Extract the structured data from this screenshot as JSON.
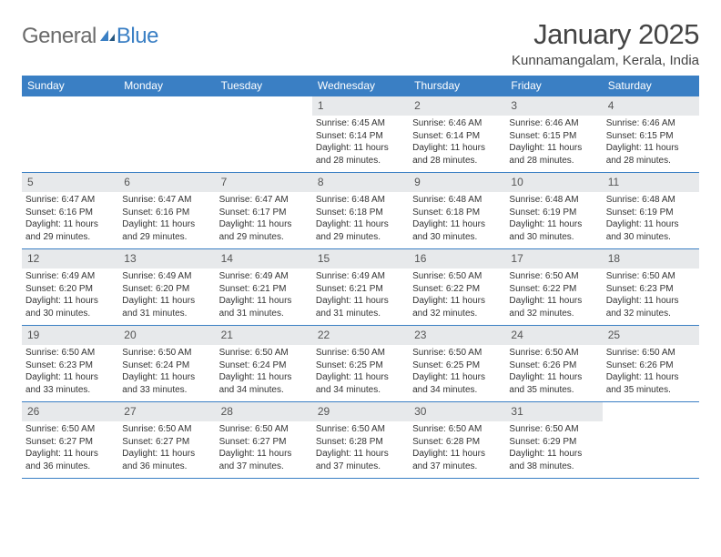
{
  "logo": {
    "general": "General",
    "blue": "Blue"
  },
  "header": {
    "title": "January 2025",
    "location": "Kunnamangalam, Kerala, India"
  },
  "colors": {
    "accent": "#3a7fc4",
    "dayHeaderBg": "#e7e9eb",
    "textMuted": "#555555",
    "logoGray": "#6b6b6b"
  },
  "daysOfWeek": [
    "Sunday",
    "Monday",
    "Tuesday",
    "Wednesday",
    "Thursday",
    "Friday",
    "Saturday"
  ],
  "weeks": [
    [
      null,
      null,
      null,
      {
        "n": "1",
        "sunrise": "6:45 AM",
        "sunset": "6:14 PM",
        "dl": "11 hours and 28 minutes."
      },
      {
        "n": "2",
        "sunrise": "6:46 AM",
        "sunset": "6:14 PM",
        "dl": "11 hours and 28 minutes."
      },
      {
        "n": "3",
        "sunrise": "6:46 AM",
        "sunset": "6:15 PM",
        "dl": "11 hours and 28 minutes."
      },
      {
        "n": "4",
        "sunrise": "6:46 AM",
        "sunset": "6:15 PM",
        "dl": "11 hours and 28 minutes."
      }
    ],
    [
      {
        "n": "5",
        "sunrise": "6:47 AM",
        "sunset": "6:16 PM",
        "dl": "11 hours and 29 minutes."
      },
      {
        "n": "6",
        "sunrise": "6:47 AM",
        "sunset": "6:16 PM",
        "dl": "11 hours and 29 minutes."
      },
      {
        "n": "7",
        "sunrise": "6:47 AM",
        "sunset": "6:17 PM",
        "dl": "11 hours and 29 minutes."
      },
      {
        "n": "8",
        "sunrise": "6:48 AM",
        "sunset": "6:18 PM",
        "dl": "11 hours and 29 minutes."
      },
      {
        "n": "9",
        "sunrise": "6:48 AM",
        "sunset": "6:18 PM",
        "dl": "11 hours and 30 minutes."
      },
      {
        "n": "10",
        "sunrise": "6:48 AM",
        "sunset": "6:19 PM",
        "dl": "11 hours and 30 minutes."
      },
      {
        "n": "11",
        "sunrise": "6:48 AM",
        "sunset": "6:19 PM",
        "dl": "11 hours and 30 minutes."
      }
    ],
    [
      {
        "n": "12",
        "sunrise": "6:49 AM",
        "sunset": "6:20 PM",
        "dl": "11 hours and 30 minutes."
      },
      {
        "n": "13",
        "sunrise": "6:49 AM",
        "sunset": "6:20 PM",
        "dl": "11 hours and 31 minutes."
      },
      {
        "n": "14",
        "sunrise": "6:49 AM",
        "sunset": "6:21 PM",
        "dl": "11 hours and 31 minutes."
      },
      {
        "n": "15",
        "sunrise": "6:49 AM",
        "sunset": "6:21 PM",
        "dl": "11 hours and 31 minutes."
      },
      {
        "n": "16",
        "sunrise": "6:50 AM",
        "sunset": "6:22 PM",
        "dl": "11 hours and 32 minutes."
      },
      {
        "n": "17",
        "sunrise": "6:50 AM",
        "sunset": "6:22 PM",
        "dl": "11 hours and 32 minutes."
      },
      {
        "n": "18",
        "sunrise": "6:50 AM",
        "sunset": "6:23 PM",
        "dl": "11 hours and 32 minutes."
      }
    ],
    [
      {
        "n": "19",
        "sunrise": "6:50 AM",
        "sunset": "6:23 PM",
        "dl": "11 hours and 33 minutes."
      },
      {
        "n": "20",
        "sunrise": "6:50 AM",
        "sunset": "6:24 PM",
        "dl": "11 hours and 33 minutes."
      },
      {
        "n": "21",
        "sunrise": "6:50 AM",
        "sunset": "6:24 PM",
        "dl": "11 hours and 34 minutes."
      },
      {
        "n": "22",
        "sunrise": "6:50 AM",
        "sunset": "6:25 PM",
        "dl": "11 hours and 34 minutes."
      },
      {
        "n": "23",
        "sunrise": "6:50 AM",
        "sunset": "6:25 PM",
        "dl": "11 hours and 34 minutes."
      },
      {
        "n": "24",
        "sunrise": "6:50 AM",
        "sunset": "6:26 PM",
        "dl": "11 hours and 35 minutes."
      },
      {
        "n": "25",
        "sunrise": "6:50 AM",
        "sunset": "6:26 PM",
        "dl": "11 hours and 35 minutes."
      }
    ],
    [
      {
        "n": "26",
        "sunrise": "6:50 AM",
        "sunset": "6:27 PM",
        "dl": "11 hours and 36 minutes."
      },
      {
        "n": "27",
        "sunrise": "6:50 AM",
        "sunset": "6:27 PM",
        "dl": "11 hours and 36 minutes."
      },
      {
        "n": "28",
        "sunrise": "6:50 AM",
        "sunset": "6:27 PM",
        "dl": "11 hours and 37 minutes."
      },
      {
        "n": "29",
        "sunrise": "6:50 AM",
        "sunset": "6:28 PM",
        "dl": "11 hours and 37 minutes."
      },
      {
        "n": "30",
        "sunrise": "6:50 AM",
        "sunset": "6:28 PM",
        "dl": "11 hours and 37 minutes."
      },
      {
        "n": "31",
        "sunrise": "6:50 AM",
        "sunset": "6:29 PM",
        "dl": "11 hours and 38 minutes."
      },
      null
    ]
  ],
  "labels": {
    "sunrise": "Sunrise:",
    "sunset": "Sunset:",
    "daylight": "Daylight:"
  }
}
